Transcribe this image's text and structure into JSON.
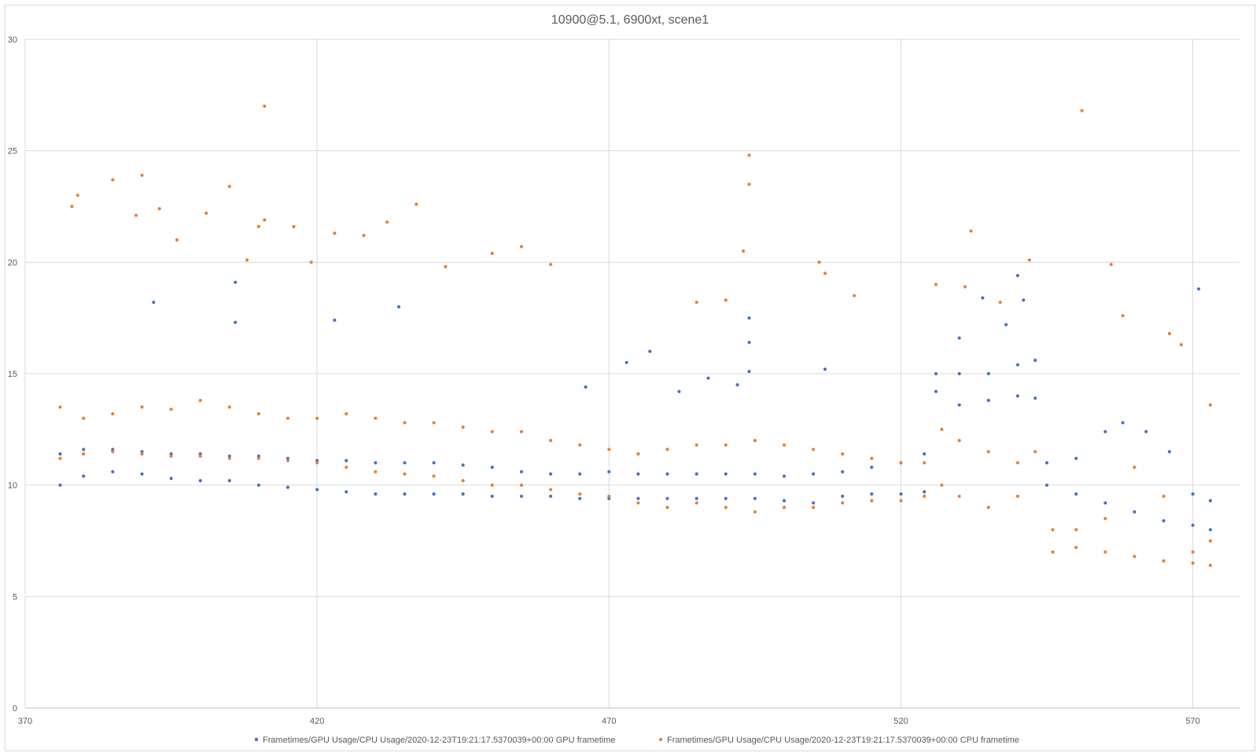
{
  "chart_data": {
    "type": "scatter",
    "title": "10900@5.1, 6900xt, scene1",
    "xlim": [
      370,
      578
    ],
    "ylim": [
      0,
      30
    ],
    "x_ticks": [
      370,
      420,
      470,
      520,
      570
    ],
    "y_ticks": [
      0,
      5,
      10,
      15,
      20,
      25,
      30
    ],
    "x_tick_labels": [
      "370",
      "420",
      "470",
      "520",
      "570"
    ],
    "y_tick_labels": [
      "0",
      "5",
      "10",
      "15",
      "20",
      "25",
      "30"
    ],
    "grid": true,
    "legend_position": "bottom",
    "series": [
      {
        "name": "Frametimes/GPU Usage/CPU Usage/2020-12-23T19:21:17.5370039+00:00 GPU frametime",
        "color": "#4472C4",
        "points": [
          [
            376,
            10.0
          ],
          [
            380,
            10.4
          ],
          [
            385,
            10.6
          ],
          [
            390,
            10.5
          ],
          [
            395,
            10.3
          ],
          [
            400,
            10.2
          ],
          [
            405,
            10.2
          ],
          [
            410,
            10.0
          ],
          [
            415,
            9.9
          ],
          [
            420,
            9.8
          ],
          [
            425,
            9.7
          ],
          [
            430,
            9.6
          ],
          [
            435,
            9.6
          ],
          [
            440,
            9.6
          ],
          [
            445,
            9.6
          ],
          [
            450,
            9.5
          ],
          [
            455,
            9.5
          ],
          [
            460,
            9.5
          ],
          [
            465,
            9.4
          ],
          [
            470,
            9.4
          ],
          [
            475,
            9.4
          ],
          [
            480,
            9.4
          ],
          [
            485,
            9.4
          ],
          [
            490,
            9.4
          ],
          [
            495,
            9.4
          ],
          [
            500,
            9.3
          ],
          [
            505,
            9.2
          ],
          [
            510,
            9.5
          ],
          [
            515,
            9.6
          ],
          [
            520,
            9.6
          ],
          [
            524,
            9.7
          ],
          [
            526,
            14.2
          ],
          [
            530,
            13.6
          ],
          [
            535,
            13.8
          ],
          [
            540,
            14.0
          ],
          [
            543,
            13.9
          ],
          [
            545,
            10.0
          ],
          [
            550,
            9.6
          ],
          [
            555,
            9.2
          ],
          [
            560,
            8.8
          ],
          [
            565,
            8.4
          ],
          [
            570,
            8.2
          ],
          [
            573,
            8.0
          ],
          [
            376,
            11.4
          ],
          [
            380,
            11.6
          ],
          [
            385,
            11.6
          ],
          [
            390,
            11.5
          ],
          [
            395,
            11.4
          ],
          [
            400,
            11.4
          ],
          [
            405,
            11.3
          ],
          [
            410,
            11.3
          ],
          [
            415,
            11.2
          ],
          [
            420,
            11.1
          ],
          [
            425,
            11.1
          ],
          [
            430,
            11.0
          ],
          [
            435,
            11.0
          ],
          [
            440,
            11.0
          ],
          [
            445,
            10.9
          ],
          [
            450,
            10.8
          ],
          [
            455,
            10.6
          ],
          [
            460,
            10.5
          ],
          [
            465,
            10.5
          ],
          [
            470,
            10.6
          ],
          [
            475,
            10.5
          ],
          [
            480,
            10.5
          ],
          [
            485,
            10.5
          ],
          [
            490,
            10.5
          ],
          [
            495,
            10.5
          ],
          [
            500,
            10.4
          ],
          [
            505,
            10.5
          ],
          [
            510,
            10.6
          ],
          [
            515,
            10.8
          ],
          [
            520,
            11.0
          ],
          [
            524,
            11.4
          ],
          [
            526,
            15.0
          ],
          [
            530,
            15.0
          ],
          [
            535,
            15.0
          ],
          [
            540,
            15.4
          ],
          [
            543,
            15.6
          ],
          [
            545,
            11.0
          ],
          [
            550,
            11.2
          ],
          [
            555,
            12.4
          ],
          [
            558,
            12.8
          ],
          [
            562,
            12.4
          ],
          [
            566,
            11.5
          ],
          [
            570,
            9.6
          ],
          [
            573,
            9.3
          ],
          [
            392,
            18.2
          ],
          [
            406,
            19.1
          ],
          [
            406,
            17.3
          ],
          [
            423,
            17.4
          ],
          [
            434,
            18.0
          ],
          [
            466,
            14.4
          ],
          [
            473,
            15.5
          ],
          [
            477,
            16.0
          ],
          [
            482,
            14.2
          ],
          [
            487,
            14.8
          ],
          [
            492,
            14.5
          ],
          [
            494,
            17.5
          ],
          [
            494,
            16.4
          ],
          [
            494,
            15.1
          ],
          [
            507,
            15.2
          ],
          [
            530,
            16.6
          ],
          [
            534,
            18.4
          ],
          [
            538,
            17.2
          ],
          [
            540,
            19.4
          ],
          [
            541,
            18.3
          ],
          [
            571,
            18.8
          ]
        ]
      },
      {
        "name": "Frametimes/GPU Usage/CPU Usage/2020-12-23T19:21:17.5370039+00:00 CPU frametime",
        "color": "#ED7D31",
        "points": [
          [
            376,
            13.5
          ],
          [
            380,
            13.0
          ],
          [
            385,
            13.2
          ],
          [
            390,
            13.5
          ],
          [
            395,
            13.4
          ],
          [
            400,
            13.8
          ],
          [
            405,
            13.5
          ],
          [
            410,
            13.2
          ],
          [
            415,
            13.0
          ],
          [
            420,
            13.0
          ],
          [
            425,
            13.2
          ],
          [
            430,
            13.0
          ],
          [
            435,
            12.8
          ],
          [
            440,
            12.8
          ],
          [
            445,
            12.6
          ],
          [
            450,
            12.4
          ],
          [
            455,
            12.4
          ],
          [
            460,
            12.0
          ],
          [
            465,
            11.8
          ],
          [
            470,
            11.6
          ],
          [
            475,
            11.4
          ],
          [
            480,
            11.6
          ],
          [
            485,
            11.8
          ],
          [
            490,
            11.8
          ],
          [
            495,
            12.0
          ],
          [
            500,
            11.8
          ],
          [
            505,
            11.6
          ],
          [
            510,
            11.4
          ],
          [
            515,
            11.2
          ],
          [
            520,
            11.0
          ],
          [
            524,
            11.0
          ],
          [
            527,
            12.5
          ],
          [
            530,
            12.0
          ],
          [
            535,
            11.5
          ],
          [
            540,
            11.0
          ],
          [
            543,
            11.5
          ],
          [
            546,
            8.0
          ],
          [
            550,
            8.0
          ],
          [
            555,
            8.5
          ],
          [
            560,
            10.8
          ],
          [
            565,
            9.5
          ],
          [
            570,
            7.0
          ],
          [
            573,
            7.5
          ],
          [
            376,
            11.2
          ],
          [
            380,
            11.4
          ],
          [
            385,
            11.5
          ],
          [
            390,
            11.4
          ],
          [
            395,
            11.3
          ],
          [
            400,
            11.3
          ],
          [
            405,
            11.2
          ],
          [
            410,
            11.2
          ],
          [
            415,
            11.1
          ],
          [
            420,
            11.0
          ],
          [
            425,
            10.8
          ],
          [
            430,
            10.6
          ],
          [
            435,
            10.5
          ],
          [
            440,
            10.4
          ],
          [
            445,
            10.2
          ],
          [
            450,
            10.0
          ],
          [
            455,
            10.0
          ],
          [
            460,
            9.8
          ],
          [
            465,
            9.6
          ],
          [
            470,
            9.5
          ],
          [
            475,
            9.2
          ],
          [
            480,
            9.0
          ],
          [
            485,
            9.2
          ],
          [
            490,
            9.0
          ],
          [
            495,
            8.8
          ],
          [
            500,
            9.0
          ],
          [
            505,
            9.0
          ],
          [
            510,
            9.2
          ],
          [
            515,
            9.3
          ],
          [
            520,
            9.3
          ],
          [
            524,
            9.5
          ],
          [
            527,
            10.0
          ],
          [
            530,
            9.5
          ],
          [
            535,
            9.0
          ],
          [
            540,
            9.5
          ],
          [
            546,
            7.0
          ],
          [
            550,
            7.2
          ],
          [
            555,
            7.0
          ],
          [
            560,
            6.8
          ],
          [
            565,
            6.6
          ],
          [
            570,
            6.5
          ],
          [
            573,
            6.4
          ],
          [
            378,
            22.5
          ],
          [
            379,
            23.0
          ],
          [
            385,
            23.7
          ],
          [
            389,
            22.1
          ],
          [
            390,
            23.9
          ],
          [
            393,
            22.4
          ],
          [
            396,
            21.0
          ],
          [
            401,
            22.2
          ],
          [
            405,
            23.4
          ],
          [
            410,
            21.6
          ],
          [
            411,
            27.0
          ],
          [
            411,
            21.9
          ],
          [
            416,
            21.6
          ],
          [
            423,
            21.3
          ],
          [
            428,
            21.2
          ],
          [
            432,
            21.8
          ],
          [
            437,
            22.6
          ],
          [
            408,
            20.1
          ],
          [
            419,
            20.0
          ],
          [
            442,
            19.8
          ],
          [
            450,
            20.4
          ],
          [
            455,
            20.7
          ],
          [
            460,
            19.9
          ],
          [
            485,
            18.2
          ],
          [
            490,
            18.3
          ],
          [
            493,
            20.5
          ],
          [
            494,
            24.8
          ],
          [
            494,
            23.5
          ],
          [
            506,
            20.0
          ],
          [
            507,
            19.5
          ],
          [
            512,
            18.5
          ],
          [
            526,
            19.0
          ],
          [
            531,
            18.9
          ],
          [
            532,
            21.4
          ],
          [
            537,
            18.2
          ],
          [
            542,
            20.1
          ],
          [
            551,
            26.8
          ],
          [
            556,
            19.9
          ],
          [
            558,
            17.6
          ],
          [
            566,
            16.8
          ],
          [
            568,
            16.3
          ],
          [
            573,
            13.6
          ]
        ]
      }
    ]
  }
}
